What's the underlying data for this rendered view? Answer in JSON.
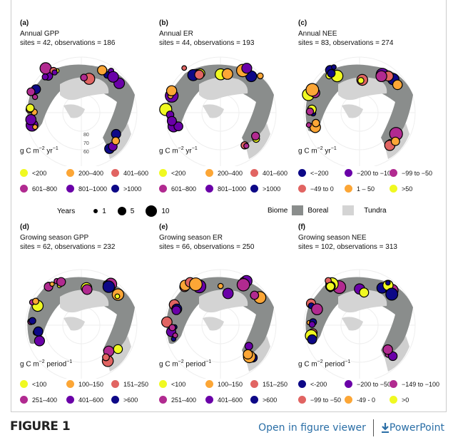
{
  "panels": [
    {
      "letter": "(a)",
      "title": "Annual GPP",
      "stats": "sites = 42, observations = 186",
      "unit_base": "g C m",
      "unit_exp1": "−2",
      "unit_mid": " yr",
      "unit_exp2": "−1",
      "legend": [
        "<200",
        "200–400",
        "401–600",
        "601–800",
        "801–1000",
        ">1000"
      ]
    },
    {
      "letter": "(b)",
      "title": "Annual ER",
      "stats": "sites = 44, observations = 193",
      "unit_base": "g C m",
      "unit_exp1": "−2",
      "unit_mid": " yr",
      "unit_exp2": "−1",
      "legend": [
        "<200",
        "200–400",
        "401–600",
        "601–800",
        "801–1000",
        ">1000"
      ]
    },
    {
      "letter": "(c)",
      "title": "Annual NEE",
      "stats": "sites = 83, observations = 274",
      "unit_base": "g C m",
      "unit_exp1": "−2",
      "unit_mid": " yr",
      "unit_exp2": "−1",
      "legend": [
        "<−200",
        "−200 to −100",
        "−99 to −50",
        "−49 to 0",
        "1 – 50",
        ">50"
      ]
    },
    {
      "letter": "(d)",
      "title": "Growing season GPP",
      "stats": "sites = 62, observations = 232",
      "unit_base": "g C m",
      "unit_exp1": "−2",
      "unit_mid": " period",
      "unit_exp2": "−1",
      "legend": [
        "<100",
        "100–150",
        "151–250",
        "251–400",
        "401–600",
        ">600"
      ]
    },
    {
      "letter": "(e)",
      "title": "Growing season ER",
      "stats": "sites = 66, observations = 250",
      "unit_base": "g C m",
      "unit_exp1": "−2",
      "unit_mid": " period",
      "unit_exp2": "−1",
      "legend": [
        "<100",
        "100–150",
        "151–250",
        "251–400",
        "401–600",
        ">600"
      ]
    },
    {
      "letter": "(f)",
      "title": "Growing season NEE",
      "stats": "sites = 102, observations = 313",
      "unit_base": "g C m",
      "unit_exp1": "−2",
      "unit_mid": " period",
      "unit_exp2": "−1",
      "legend": [
        "<-200",
        "−200 to −50",
        "−149 to −100",
        "−99 to −50",
        "-49 - 0",
        ">0"
      ]
    }
  ],
  "colors_positive": [
    "#f0f921",
    "#fca636",
    "#e16462",
    "#b12a90",
    "#6a00a8",
    "#0d0887"
  ],
  "colors_nee": [
    "#0d0887",
    "#6a00a8",
    "#b12a90",
    "#e16462",
    "#fca636",
    "#f0f921"
  ],
  "lat_labels": [
    "80",
    "70",
    "60"
  ],
  "years_legend": {
    "label": "Years",
    "values": [
      "1",
      "5",
      "10"
    ]
  },
  "biome_legend": {
    "label": "Biome",
    "items": [
      {
        "name": "Boreal",
        "color": "#8a8d8c"
      },
      {
        "name": "Tundra",
        "color": "#d4d4d4"
      }
    ]
  },
  "footer": {
    "figure_label": "FIGURE 1",
    "open_viewer": "Open in figure viewer",
    "powerpoint": "PowerPoint"
  }
}
